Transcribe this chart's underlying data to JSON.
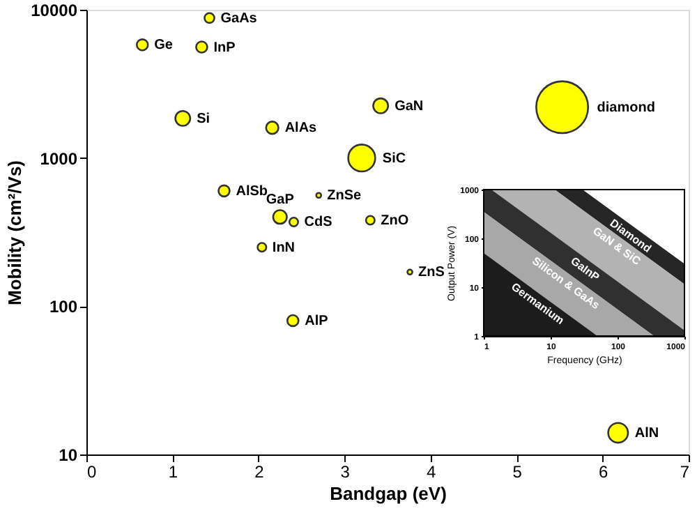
{
  "chart_data": [
    {
      "type": "bubble",
      "xlabel": "Bandgap (eV)",
      "ylabel": "Mobility (cm²/Vs)",
      "log": "y",
      "xlim": [
        0,
        7
      ],
      "ylim": [
        10,
        10000
      ],
      "xticks": [
        0,
        1,
        2,
        3,
        4,
        5,
        6,
        7
      ],
      "yticks": [
        10,
        100,
        1000,
        10000
      ],
      "color": "#ffff00",
      "x": [
        1.43,
        0.65,
        1.34,
        1.12,
        2.16,
        3.42,
        5.53,
        3.2,
        1.6,
        2.7,
        2.25,
        2.41,
        2.04,
        3.3,
        3.76,
        2.4,
        6.18
      ],
      "values": [
        8800,
        5800,
        5600,
        1850,
        1600,
        2250,
        2200,
        1000,
        600,
        560,
        400,
        370,
        250,
        380,
        170,
        80,
        14
      ],
      "sizes": [
        0.036,
        0.046,
        0.046,
        0.082,
        0.057,
        0.082,
        1,
        0.27,
        0.046,
        0.009,
        0.069,
        0.028,
        0.028,
        0.028,
        0.009,
        0.046,
        0.145
      ],
      "annotations": [
        {
          "text": "GaAs",
          "x": 1.43,
          "y": 8800
        },
        {
          "text": "Ge",
          "x": 0.65,
          "y": 5800
        },
        {
          "text": "InP",
          "x": 1.34,
          "y": 5600
        },
        {
          "text": "Si",
          "x": 1.12,
          "y": 1850
        },
        {
          "text": "AlAs",
          "x": 2.16,
          "y": 1600
        },
        {
          "text": "GaN",
          "x": 3.42,
          "y": 2250
        },
        {
          "text": "diamond",
          "x": 5.53,
          "y": 2200
        },
        {
          "text": "SiC",
          "x": 3.2,
          "y": 1000
        },
        {
          "text": "AlSb",
          "x": 1.6,
          "y": 600
        },
        {
          "text": "ZnSe",
          "x": 2.7,
          "y": 560
        },
        {
          "text": "GaP",
          "x": 2.25,
          "y": 400
        },
        {
          "text": "CdS",
          "x": 2.41,
          "y": 370
        },
        {
          "text": "InN",
          "x": 2.04,
          "y": 250
        },
        {
          "text": "ZnO",
          "x": 3.3,
          "y": 380
        },
        {
          "text": "ZnS",
          "x": 3.76,
          "y": 170
        },
        {
          "text": "AlP",
          "x": 2.4,
          "y": 80
        },
        {
          "text": "AlN",
          "x": 6.18,
          "y": 14
        }
      ]
    },
    {
      "type": "area",
      "xlabel": "Frequency (GHz)",
      "ylabel": "Output Power (V)",
      "log": "xy",
      "xlim": [
        1,
        1000
      ],
      "ylim": [
        1,
        1000
      ],
      "xticks": [
        1,
        10,
        100,
        1000
      ],
      "yticks": [
        1,
        10,
        100,
        1000
      ],
      "series": [
        {
          "name": "Diamond",
          "color": "#262626",
          "x": [
            1,
            30,
            1000
          ],
          "values": [
            1000,
            1000,
            30
          ]
        },
        {
          "name": "GaN & SiC",
          "color": "#b3b3b3",
          "x": [
            1,
            11.5,
            1000
          ],
          "values": [
            1000,
            1000,
            11.5
          ]
        },
        {
          "name": "GaInP",
          "color": "#303030",
          "x": [
            1,
            1.3,
            1000
          ],
          "values": [
            1000,
            1000,
            1.3
          ]
        },
        {
          "name": "Silicon & GaAs",
          "color": "#a8a8a8",
          "x": [
            1,
            350
          ],
          "values": [
            350,
            1
          ]
        },
        {
          "name": "Germanium",
          "color": "#1c1c1c",
          "x": [
            1,
            50
          ],
          "values": [
            50,
            1
          ]
        }
      ]
    }
  ]
}
